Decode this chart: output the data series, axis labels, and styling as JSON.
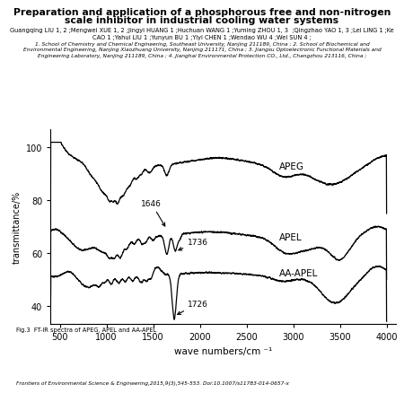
{
  "title_line1": "Preparation and application of a phosphorous free and non-nitrogen",
  "title_line2": "scale inhibitor in industrial cooling water systems",
  "authors": "Guangqing LIU 1, 2 ;Mengwei XUE 1, 2 ;Jingyi HUANG 1 ;Huchuan WANG 1 ;Yuming ZHOU 1, 3  ;Qingzhao YAO 1, 3 ;Lei LING 1 ;Ke\nCAO 1 ;Yahui LIU 1 ;Yunyun BU 1 ;Yiyi CHEN 1 ;Wendao WU 4 ;Wei SUN 4 ;",
  "affiliation": "1. School of Chemistry and Chemical Engineering, Southeast University, Nanjing 211189, China ; 2. School of Biochemical and\nEnvironmental Engineering, Nanjing Xiaozhuang University, Nanjing 211171, China ; 3. Jiangsu Optoelectronic Functional Materials and\nEngineering Laboratory, Nanjing 211189, China ; 4. Jianghai Environmental Protection CO., Ltd., Changzhou 213116, China ;",
  "fig_caption": "Fig.3  FT-IR spectra of APEG, APEL and AA-APEL",
  "journal_info": "Frontiers of Environmental Science & Engineering,2015,9(3),545-553. Doi:10.1007/s11783-014-0657-x",
  "xlabel": "wave numbers/cm ⁻¹",
  "ylabel": "transmittance/%",
  "xlim": [
    400,
    4100
  ],
  "ylim": [
    33,
    107
  ],
  "yticks": [
    40,
    60,
    80,
    100
  ],
  "xticks": [
    500,
    1000,
    1500,
    2000,
    2500,
    3000,
    3500,
    4000
  ],
  "label_apeg": "APEG",
  "label_apel": "APEL",
  "label_aaapel": "AA-APEL",
  "ann_1646_text": "1646",
  "ann_1736_text": "1736",
  "ann_1726_text": "1726",
  "background_color": "#ffffff"
}
